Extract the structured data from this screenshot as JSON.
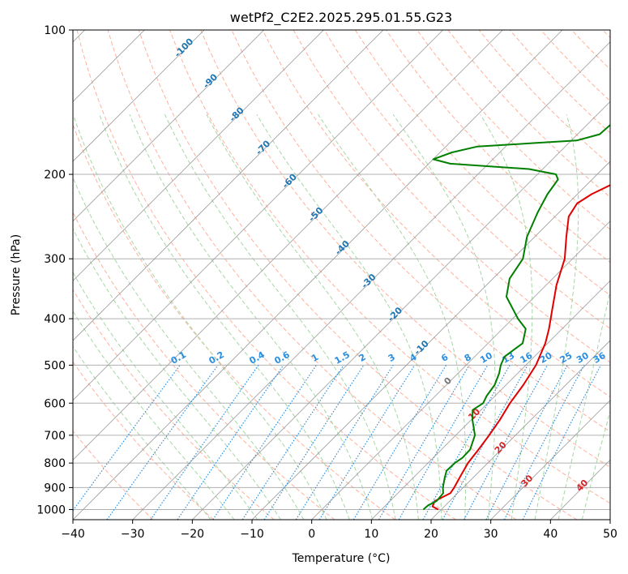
{
  "chart_data": {
    "type": "line",
    "subtype": "skew-t log-p diagram",
    "title": "wetPf2_C2E2.2025.295.01.55.G23",
    "xlabel": "Temperature (°C)",
    "ylabel": "Pressure (hPa)",
    "xlim": [
      -40,
      50
    ],
    "ylim": [
      1050,
      100
    ],
    "y_scale": "log",
    "grid": true,
    "x_ticks": [
      "−40",
      "−30",
      "−20",
      "−10",
      "0",
      "10",
      "20",
      "30",
      "40",
      "50"
    ],
    "x_tick_values": [
      -40,
      -30,
      -20,
      -10,
      0,
      10,
      20,
      30,
      40,
      50
    ],
    "y_ticks": [
      "100",
      "200",
      "300",
      "400",
      "500",
      "600",
      "700",
      "800",
      "900",
      "1000"
    ],
    "y_tick_values": [
      100,
      200,
      300,
      400,
      500,
      600,
      700,
      800,
      900,
      1000
    ],
    "colors": {
      "temperature": "#e00000",
      "dewpoint": "#008000",
      "isotherm": "#9a9a9a",
      "dry_adiabat": "#ffb09a",
      "moist_adiabat": "#a6d6a6",
      "mixing_ratio": "#2a8fe0",
      "isotherm_label_cold": "#1f77b4",
      "isotherm_label_warm": "#d62728",
      "isotherm_label_zero": "#777777"
    },
    "series": [
      {
        "key": "temperature",
        "points": [
          [
            1000,
            19.5
          ],
          [
            985,
            18.0
          ],
          [
            960,
            17.5
          ],
          [
            925,
            18.8
          ],
          [
            900,
            18.5
          ],
          [
            850,
            17.6
          ],
          [
            800,
            16.7
          ],
          [
            750,
            16.2
          ],
          [
            700,
            15.6
          ],
          [
            650,
            14.8
          ],
          [
            600,
            13.7
          ],
          [
            550,
            12.9
          ],
          [
            500,
            11.7
          ],
          [
            450,
            9.6
          ],
          [
            420,
            7.8
          ],
          [
            380,
            4.9
          ],
          [
            340,
            1.7
          ],
          [
            300,
            -1.3
          ],
          [
            270,
            -4.7
          ],
          [
            245,
            -7.7
          ],
          [
            230,
            -8.5
          ],
          [
            220,
            -7.6
          ],
          [
            210,
            -5.9
          ],
          [
            200,
            -4.7
          ],
          [
            190,
            -2.1
          ],
          [
            180,
            -0.1
          ],
          [
            175,
            1.6
          ],
          [
            170,
            1.6
          ],
          [
            160,
            0.8
          ],
          [
            150,
            0.7
          ],
          [
            140,
            1.9
          ],
          [
            130,
            2.6
          ],
          [
            120,
            3.4
          ],
          [
            115,
            4.1
          ],
          [
            110,
            6.1
          ],
          [
            100,
            9.6
          ]
        ]
      },
      {
        "key": "dewpoint",
        "points": [
          [
            1000,
            17.0
          ],
          [
            980,
            17.1
          ],
          [
            960,
            17.8
          ],
          [
            925,
            17.6
          ],
          [
            900,
            16.6
          ],
          [
            860,
            15.3
          ],
          [
            830,
            14.4
          ],
          [
            800,
            14.5
          ],
          [
            780,
            14.9
          ],
          [
            750,
            14.8
          ],
          [
            700,
            13.2
          ],
          [
            650,
            10.2
          ],
          [
            620,
            8.6
          ],
          [
            600,
            9.2
          ],
          [
            580,
            8.6
          ],
          [
            550,
            8.1
          ],
          [
            520,
            6.9
          ],
          [
            500,
            5.8
          ],
          [
            480,
            5.0
          ],
          [
            450,
            5.8
          ],
          [
            420,
            3.9
          ],
          [
            400,
            0.9
          ],
          [
            360,
            -4.7
          ],
          [
            330,
            -7.2
          ],
          [
            300,
            -8.3
          ],
          [
            270,
            -11.3
          ],
          [
            240,
            -13.6
          ],
          [
            220,
            -15.0
          ],
          [
            205,
            -15.7
          ],
          [
            200,
            -16.9
          ],
          [
            195,
            -22.3
          ],
          [
            190,
            -36.4
          ],
          [
            186,
            -40.0
          ],
          [
            180,
            -38.0
          ],
          [
            175,
            -34.7
          ],
          [
            172,
            -25.4
          ],
          [
            170,
            -19.1
          ],
          [
            165,
            -16.3
          ],
          [
            155,
            -16.0
          ],
          [
            145,
            -16.0
          ],
          [
            130,
            -13.5
          ],
          [
            115,
            -9.8
          ],
          [
            100,
            -3.0
          ]
        ]
      }
    ],
    "isotherm_labels": [
      {
        "text": "-100",
        "t": -100,
        "cls": "cold"
      },
      {
        "text": "-90",
        "t": -90,
        "cls": "cold"
      },
      {
        "text": "-80",
        "t": -80,
        "cls": "cold"
      },
      {
        "text": "-70",
        "t": -70,
        "cls": "cold"
      },
      {
        "text": "-60",
        "t": -60,
        "cls": "cold"
      },
      {
        "text": "-50",
        "t": -50,
        "cls": "cold"
      },
      {
        "text": "-40",
        "t": -40,
        "cls": "cold"
      },
      {
        "text": "-30",
        "t": -30,
        "cls": "cold"
      },
      {
        "text": "-20",
        "t": -20,
        "cls": "cold"
      },
      {
        "text": "-10",
        "t": -10,
        "cls": "cold"
      },
      {
        "text": "0",
        "t": 0,
        "cls": "zero"
      },
      {
        "text": "10",
        "t": 10,
        "cls": "warm"
      },
      {
        "text": "20",
        "t": 20,
        "cls": "warm"
      },
      {
        "text": "30",
        "t": 30,
        "cls": "warm"
      },
      {
        "text": "40",
        "t": 40,
        "cls": "warm"
      }
    ],
    "mixing_ratio_labels": [
      "0.1",
      "0.2",
      "0.4",
      "0.6",
      "1",
      "1.5",
      "2",
      "3",
      "4",
      "6",
      "8",
      "10",
      "13",
      "16",
      "20",
      "25",
      "30",
      "36"
    ],
    "mixing_ratio_values": [
      0.1,
      0.2,
      0.4,
      0.6,
      1,
      1.5,
      2,
      3,
      4,
      6,
      8,
      10,
      13,
      16,
      20,
      25,
      30,
      36
    ],
    "mixing_ratio_label_pressure": 500
  }
}
